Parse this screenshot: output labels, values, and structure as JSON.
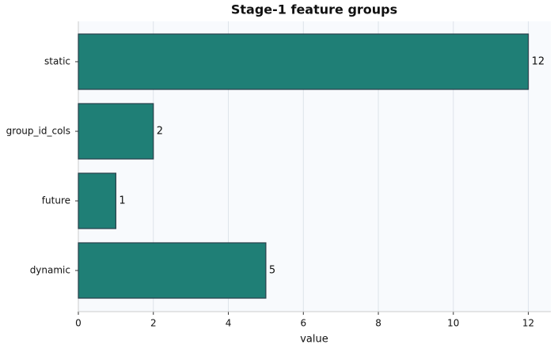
{
  "chart_data": {
    "type": "bar",
    "orientation": "horizontal",
    "title": "Stage-1 feature groups",
    "xlabel": "value",
    "categories": [
      "static",
      "group_id_cols",
      "future",
      "dynamic"
    ],
    "values": [
      12,
      2,
      1,
      5
    ],
    "color": "#1f7f76",
    "xlim": [
      0,
      12.6
    ],
    "xticks": [
      0,
      2,
      4,
      6,
      8,
      10,
      12
    ],
    "grid": true
  }
}
